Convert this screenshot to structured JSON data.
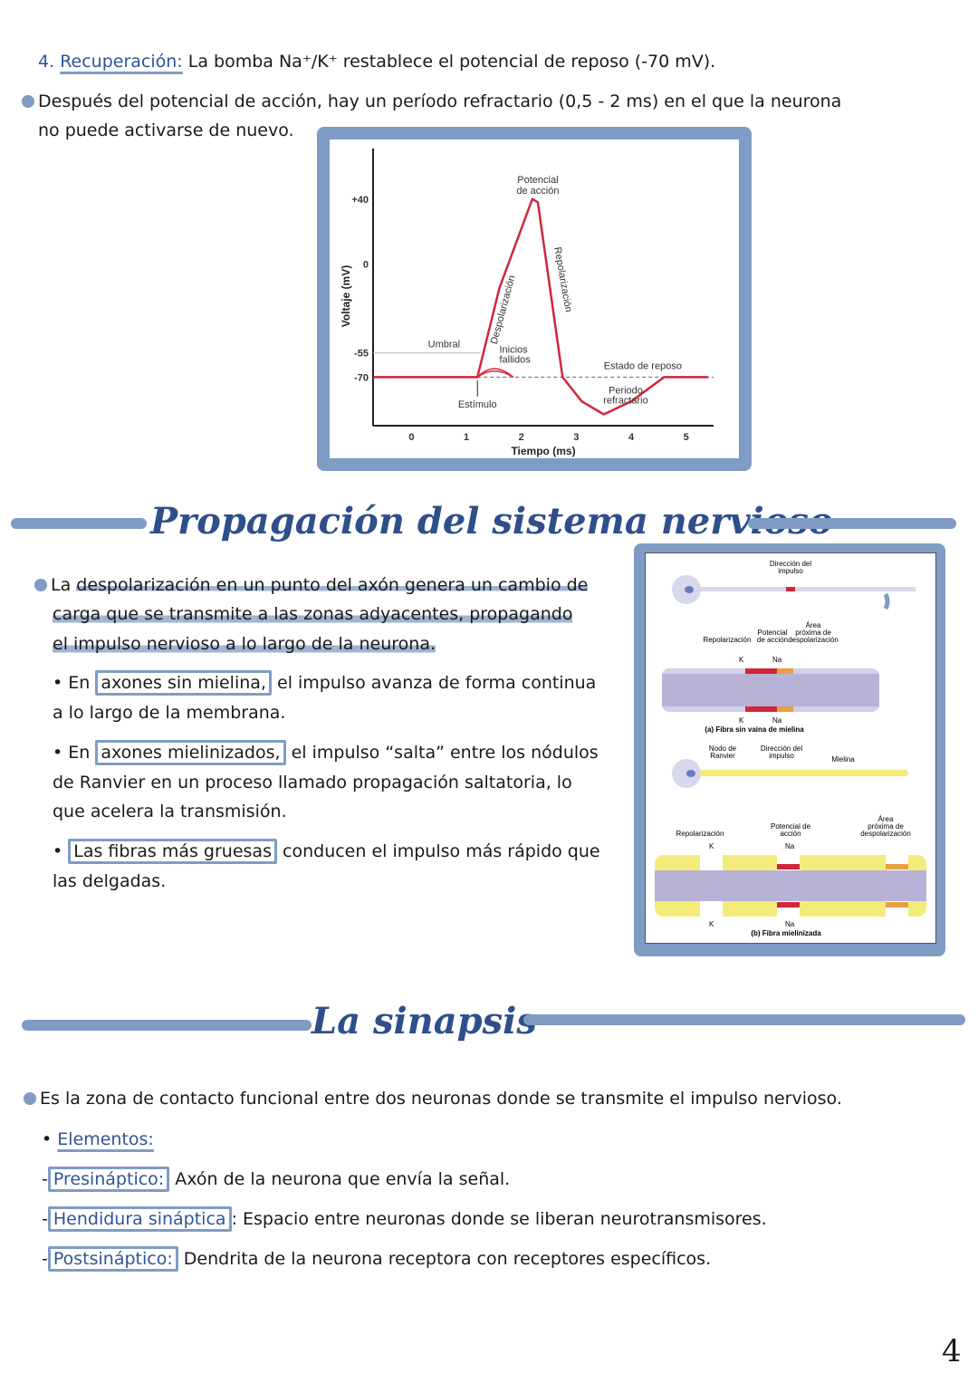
{
  "top": {
    "step_number": "4.",
    "step_label": "Recuperación:",
    "step_text": "La bomba Na⁺/K⁺ restablece el potencial de reposo (-70 mV).",
    "refractory_line1": "Después del potencial de acción, hay un período refractario (0,5 - 2 ms) en el que la neurona",
    "refractory_line2": "no puede activarse de nuevo."
  },
  "chart_data": {
    "type": "line",
    "xlabel": "Tiempo (ms)",
    "ylabel": "Voltaje (mV)",
    "x_ticks": [
      "0",
      "1",
      "2",
      "3",
      "4",
      "5"
    ],
    "y_ticks": [
      "+40",
      "0",
      "-55",
      "-70"
    ],
    "y_tick_values": [
      40,
      0,
      -55,
      -70
    ],
    "xlim": [
      -0.7,
      5.5
    ],
    "ylim": [
      -100,
      60
    ],
    "series": [
      {
        "x": [
          -0.7,
          1.2,
          1.6,
          2.2,
          2.3,
          2.75,
          3.1,
          3.5,
          4.0,
          4.6,
          5.4
        ],
        "y": [
          -70,
          -70,
          -15,
          40,
          38,
          -70,
          -85,
          -93,
          -85,
          -70,
          -70
        ],
        "color": "#d0273a"
      }
    ],
    "failed_starts": [
      {
        "peak_x": 1.5,
        "peak_y": -63
      },
      {
        "peak_x": 1.5,
        "peak_y": -66
      }
    ],
    "threshold": -55,
    "rest": -70,
    "annotations": {
      "peak": [
        "Potencial",
        "de acción"
      ],
      "depol": "Despolarización",
      "repol": "Repolarización",
      "threshold": "Umbral",
      "failed": [
        "Inicios",
        "fallidos"
      ],
      "rest": "Estado de reposo",
      "refractory": [
        "Periodo",
        "refractario"
      ],
      "stimulus": "Estímulo"
    },
    "grid": false
  },
  "propagation": {
    "title": "Propagación del sistema nervioso",
    "p1_l1_a": "La ",
    "p1_l1_b": "despolarización en un punto del axón genera un cambio de",
    "p1_l2": "carga que se transmite a las zonas adyacentes, propagando",
    "p1_l3": "el impulso nervioso a lo largo de la neurona.",
    "b1_pre": "• En ",
    "b1_box": "axones sin mielina,",
    "b1_post": " el impulso avanza de forma continua",
    "b1_l2": "a lo largo de la membrana.",
    "b2_pre": "• En ",
    "b2_box": "axones mielinizados,",
    "b2_post": " el impulso “salta” entre los nódulos",
    "b2_l2": "de Ranvier en un proceso llamado propagación saltatoria, lo",
    "b2_l3": "que acelera la transmisión.",
    "b3_pre": "• ",
    "b3_box": "Las fibras más gruesas",
    "b3_post": " conducen el impulso más rápido que",
    "b3_l2": "las delgadas."
  },
  "diagram": {
    "direction": [
      "Dirección del",
      "impulso"
    ],
    "repol": "Repolarización",
    "ap": [
      "Potencial",
      "de acción"
    ],
    "near": [
      "Área",
      "próxima de",
      "despolarización"
    ],
    "k": "K",
    "na": "Na",
    "caption_a": "(a) Fibra sin vaina de mielina",
    "node": [
      "Nodo de",
      "Ranvier"
    ],
    "myelin": "Mielina",
    "ap_b": [
      "Potencial de",
      "acción"
    ],
    "caption_b": "(b) Fibra mielinizada"
  },
  "synapse": {
    "title": "La sinapsis",
    "intro": "Es la zona de contacto funcional entre dos neuronas donde se transmite el impulso nervioso.",
    "elements_label": "Elementos:",
    "items": [
      {
        "term": "Presináptico:",
        "text": " Axón de la neurona que envía la señal."
      },
      {
        "term": "Hendidura sináptica",
        "text": ": Espacio entre neuronas donde se liberan neurotransmisores."
      },
      {
        "term": "Postsináptico:",
        "text": " Dendrita de la neurona receptora con receptores específicos."
      }
    ]
  },
  "page_number": "4"
}
